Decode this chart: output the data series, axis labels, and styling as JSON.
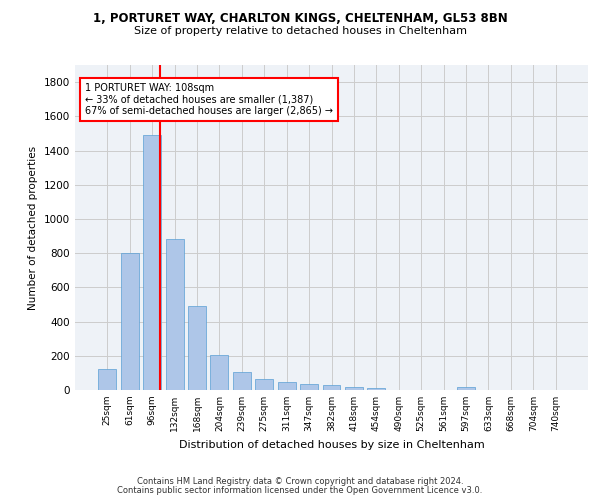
{
  "title_line1": "1, PORTURET WAY, CHARLTON KINGS, CHELTENHAM, GL53 8BN",
  "title_line2": "Size of property relative to detached houses in Cheltenham",
  "xlabel": "Distribution of detached houses by size in Cheltenham",
  "ylabel": "Number of detached properties",
  "footer_line1": "Contains HM Land Registry data © Crown copyright and database right 2024.",
  "footer_line2": "Contains public sector information licensed under the Open Government Licence v3.0.",
  "categories": [
    "25sqm",
    "61sqm",
    "96sqm",
    "132sqm",
    "168sqm",
    "204sqm",
    "239sqm",
    "275sqm",
    "311sqm",
    "347sqm",
    "382sqm",
    "418sqm",
    "454sqm",
    "490sqm",
    "525sqm",
    "561sqm",
    "597sqm",
    "633sqm",
    "668sqm",
    "704sqm",
    "740sqm"
  ],
  "values": [
    125,
    800,
    1490,
    880,
    490,
    205,
    105,
    65,
    45,
    35,
    30,
    20,
    10,
    0,
    0,
    0,
    15,
    0,
    0,
    0,
    0
  ],
  "bar_color": "#aec6e8",
  "bar_edge_color": "#5a9fd4",
  "property_line_label": "1 PORTURET WAY: 108sqm",
  "annotation_line1": "← 33% of detached houses are smaller (1,387)",
  "annotation_line2": "67% of semi-detached houses are larger (2,865) →",
  "annotation_box_color": "red",
  "ylim": [
    0,
    1900
  ],
  "yticks": [
    0,
    200,
    400,
    600,
    800,
    1000,
    1200,
    1400,
    1600,
    1800
  ],
  "grid_color": "#cccccc",
  "bg_color": "#eef2f7"
}
